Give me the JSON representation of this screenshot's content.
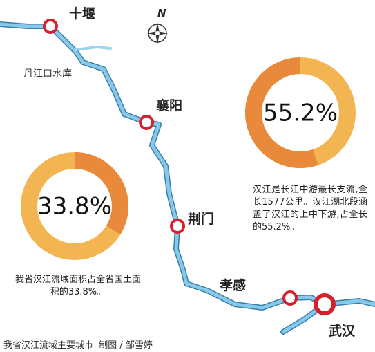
{
  "map": {
    "compass": "N",
    "reservoir": "丹江口水库",
    "cities": [
      "十堰",
      "襄阳",
      "荆门",
      "孝感",
      "武汉"
    ]
  },
  "chart_data": [
    {
      "type": "donut",
      "values": [
        33.8
      ],
      "value_labels": [
        "33.8%"
      ],
      "colors": [
        "#e8893c",
        "#f3b552"
      ],
      "note": "我省汉江流域面积占全省国土面积的33.8%。"
    },
    {
      "type": "donut",
      "values": [
        55.2
      ],
      "value_labels": [
        "55.2%"
      ],
      "colors": [
        "#e8893c",
        "#f3b552"
      ],
      "note": "汉江是长江中游最长支流,全长1577公里。汉江湖北段涵盖了汉江的上中下游,占全长的55.2%。"
    }
  ],
  "caption": "我省汉江流域主要城市  制图 / 邹雪婷"
}
